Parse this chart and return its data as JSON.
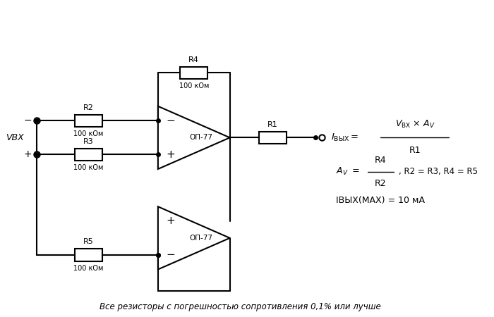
{
  "background_color": "#ffffff",
  "line_color": "#000000",
  "line_width": 1.5,
  "text_color": "#000000",
  "figure_width": 7.0,
  "figure_height": 4.5,
  "footer_text": "Все резисторы с погрешностью сопротивления 0,1% или лучше",
  "vbx_label": "VВХ",
  "r1_label": "R1",
  "r2_label": "R2",
  "r3_label": "R3",
  "r4_label": "R4",
  "r5_label": "R5",
  "r_value": "100 кОм",
  "op77_label": "ОП-77",
  "formula_imax": "IВЫХ(MAX) = 10 мА"
}
